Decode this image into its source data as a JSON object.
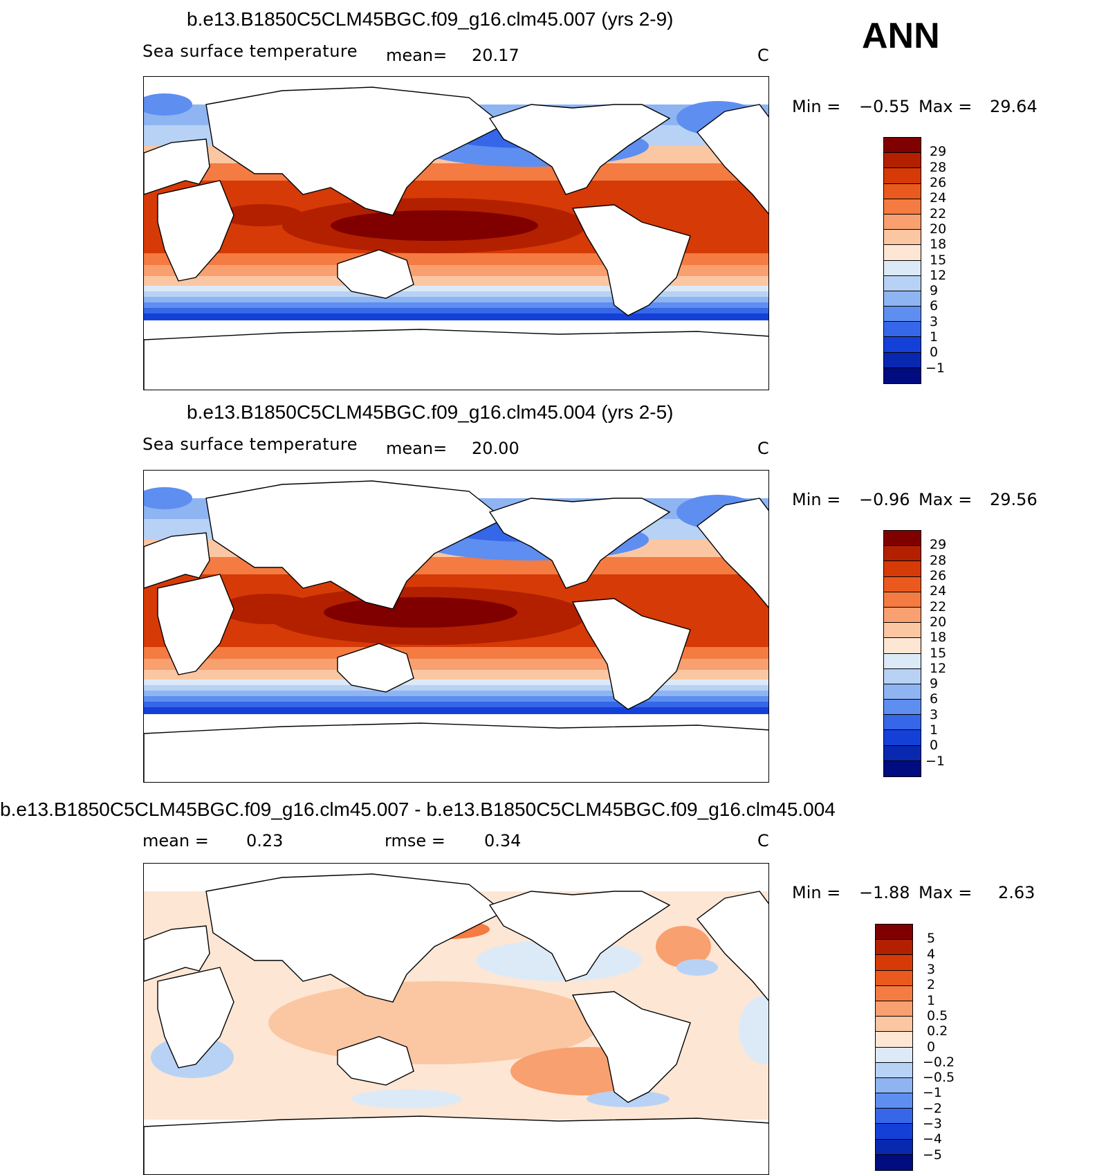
{
  "page_label": "ANN",
  "panels": [
    {
      "title": "b.e13.B1850C5CLM45BGC.f09_g16.clm45.007 (yrs 2-9)",
      "variable": "Sea surface temperature",
      "mean_label": "mean=",
      "mean_value": "20.17",
      "units": "C",
      "min_label": "Min =",
      "min_value": "−0.55",
      "max_label": "Max =",
      "max_value": "29.64",
      "colorbar_labels": [
        "29",
        "28",
        "26",
        "24",
        "22",
        "20",
        "18",
        "15",
        "12",
        "9",
        "6",
        "3",
        "1",
        "0",
        "−1"
      ]
    },
    {
      "title": "b.e13.B1850C5CLM45BGC.f09_g16.clm45.004 (yrs 2-5)",
      "variable": "Sea surface temperature",
      "mean_label": "mean=",
      "mean_value": "20.00",
      "units": "C",
      "min_label": "Min =",
      "min_value": "−0.96",
      "max_label": "Max =",
      "max_value": "29.56",
      "colorbar_labels": [
        "29",
        "28",
        "26",
        "24",
        "22",
        "20",
        "18",
        "15",
        "12",
        "9",
        "6",
        "3",
        "1",
        "0",
        "−1"
      ]
    },
    {
      "title": "b.e13.B1850C5CLM45BGC.f09_g16.clm45.007 - b.e13.B1850C5CLM45BGC.f09_g16.clm45.004",
      "mean_label": "mean =",
      "mean_value": "0.23",
      "rmse_label": "rmse =",
      "rmse_value": "0.34",
      "units": "C",
      "min_label": "Min =",
      "min_value": "−1.88",
      "max_label": "Max =",
      "max_value": "2.63",
      "colorbar_labels": [
        "5",
        "4",
        "3",
        "2",
        "1",
        "0.5",
        "0.2",
        "0",
        "−0.2",
        "−0.5",
        "−1",
        "−2",
        "−3",
        "−4",
        "−5"
      ]
    }
  ],
  "colors": {
    "sst_scale": [
      "#800000",
      "#b22000",
      "#d63a06",
      "#ea5a1e",
      "#f47b42",
      "#f8a070",
      "#fbc6a2",
      "#fde6d4",
      "#dceaf8",
      "#b8d2f5",
      "#8eb4f2",
      "#5e8ef0",
      "#3567e8",
      "#1440d8",
      "#0828b0",
      "#000c80"
    ],
    "diff_scale": [
      "#800000",
      "#b22000",
      "#d63a06",
      "#ea5a1e",
      "#f47b42",
      "#f8a070",
      "#fbc6a2",
      "#fde6d4",
      "#dceaf8",
      "#b8d2f5",
      "#8eb4f2",
      "#5e8ef0",
      "#3567e8",
      "#1440d8",
      "#0828b0",
      "#000c80"
    ]
  }
}
